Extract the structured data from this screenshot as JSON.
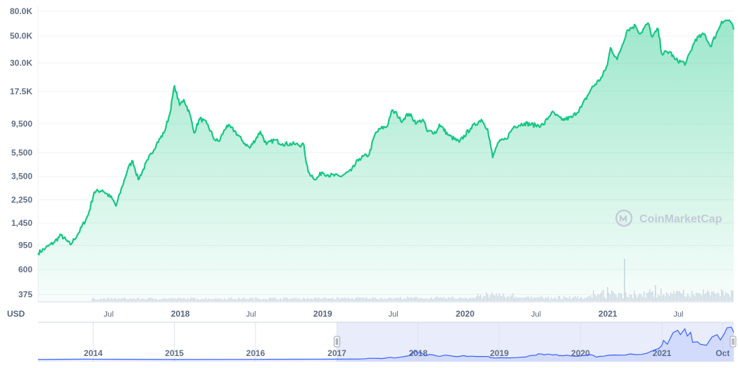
{
  "currency_label": "USD",
  "watermark": "CoinMarketCap",
  "colors": {
    "line": "#16c784",
    "fill_top": "#16c784",
    "volume": "#cfd6e4",
    "grid": "#eff2f5",
    "navigator_line": "#3861fb",
    "navigator_selection": "#e8ecfb"
  },
  "chart_data": {
    "type": "area",
    "scale": "log",
    "ylim": [
      330,
      82000
    ],
    "y_ticks": [
      {
        "value": 80000,
        "label": "80.0K"
      },
      {
        "value": 50000,
        "label": "50.0K"
      },
      {
        "value": 30000,
        "label": "30.0K"
      },
      {
        "value": 17500,
        "label": "17.5K"
      },
      {
        "value": 9500,
        "label": "9,500"
      },
      {
        "value": 5500,
        "label": "5,500"
      },
      {
        "value": 3500,
        "label": "3,500"
      },
      {
        "value": 2250,
        "label": "2,250"
      },
      {
        "value": 1450,
        "label": "1,450"
      },
      {
        "value": 950,
        "label": "950"
      },
      {
        "value": 600,
        "label": "600"
      },
      {
        "value": 375,
        "label": "375"
      }
    ],
    "x_range": [
      "2017-01-01",
      "2021-11-20"
    ],
    "x_ticks": [
      {
        "date": "2017-07-01",
        "label": "Jul",
        "bold": false
      },
      {
        "date": "2018-01-01",
        "label": "2018",
        "bold": true
      },
      {
        "date": "2018-07-01",
        "label": "Jul",
        "bold": false
      },
      {
        "date": "2019-01-01",
        "label": "2019",
        "bold": true
      },
      {
        "date": "2019-07-01",
        "label": "Jul",
        "bold": false
      },
      {
        "date": "2020-01-01",
        "label": "2020",
        "bold": true
      },
      {
        "date": "2020-07-01",
        "label": "Jul",
        "bold": false
      },
      {
        "date": "2021-01-01",
        "label": "2021",
        "bold": true
      },
      {
        "date": "2021-07-01",
        "label": "Jul",
        "bold": false
      }
    ],
    "series": [
      {
        "points": [
          [
            "2017-01-01",
            820
          ],
          [
            "2017-01-20",
            900
          ],
          [
            "2017-02-10",
            1000
          ],
          [
            "2017-03-01",
            1150
          ],
          [
            "2017-03-25",
            960
          ],
          [
            "2017-04-15",
            1200
          ],
          [
            "2017-05-10",
            1700
          ],
          [
            "2017-05-25",
            2600
          ],
          [
            "2017-06-15",
            2700
          ],
          [
            "2017-07-10",
            2300
          ],
          [
            "2017-07-20",
            2000
          ],
          [
            "2017-08-05",
            2900
          ],
          [
            "2017-08-20",
            4100
          ],
          [
            "2017-09-01",
            4700
          ],
          [
            "2017-09-15",
            3300
          ],
          [
            "2017-10-10",
            4800
          ],
          [
            "2017-11-01",
            6500
          ],
          [
            "2017-11-20",
            8000
          ],
          [
            "2017-12-05",
            11500
          ],
          [
            "2017-12-17",
            19500
          ],
          [
            "2017-12-30",
            13500
          ],
          [
            "2018-01-10",
            15000
          ],
          [
            "2018-01-25",
            11500
          ],
          [
            "2018-02-05",
            8000
          ],
          [
            "2018-02-20",
            10500
          ],
          [
            "2018-03-10",
            9500
          ],
          [
            "2018-03-30",
            7000
          ],
          [
            "2018-04-10",
            6800
          ],
          [
            "2018-04-30",
            9200
          ],
          [
            "2018-05-20",
            8300
          ],
          [
            "2018-06-10",
            6800
          ],
          [
            "2018-06-28",
            6000
          ],
          [
            "2018-07-25",
            8200
          ],
          [
            "2018-08-10",
            6400
          ],
          [
            "2018-08-30",
            7000
          ],
          [
            "2018-09-20",
            6500
          ],
          [
            "2018-10-20",
            6450
          ],
          [
            "2018-11-14",
            6300
          ],
          [
            "2018-11-20",
            4500
          ],
          [
            "2018-11-25",
            3800
          ],
          [
            "2018-12-15",
            3300
          ],
          [
            "2018-12-30",
            3800
          ],
          [
            "2019-01-15",
            3600
          ],
          [
            "2019-02-15",
            3500
          ],
          [
            "2019-03-15",
            3900
          ],
          [
            "2019-04-05",
            4900
          ],
          [
            "2019-04-30",
            5300
          ],
          [
            "2019-05-15",
            7800
          ],
          [
            "2019-05-30",
            8700
          ],
          [
            "2019-06-15",
            9000
          ],
          [
            "2019-06-26",
            12000
          ],
          [
            "2019-07-10",
            11500
          ],
          [
            "2019-07-20",
            10000
          ],
          [
            "2019-08-10",
            11500
          ],
          [
            "2019-08-30",
            9600
          ],
          [
            "2019-09-15",
            10300
          ],
          [
            "2019-09-26",
            8200
          ],
          [
            "2019-10-20",
            8100
          ],
          [
            "2019-10-27",
            9400
          ],
          [
            "2019-11-20",
            7600
          ],
          [
            "2019-12-17",
            6700
          ],
          [
            "2020-01-15",
            8700
          ],
          [
            "2020-02-12",
            10300
          ],
          [
            "2020-02-28",
            8600
          ],
          [
            "2020-03-12",
            5000
          ],
          [
            "2020-03-25",
            6600
          ],
          [
            "2020-04-15",
            7100
          ],
          [
            "2020-05-05",
            9000
          ],
          [
            "2020-06-01",
            9600
          ],
          [
            "2020-06-30",
            9200
          ],
          [
            "2020-07-20",
            9300
          ],
          [
            "2020-08-10",
            11800
          ],
          [
            "2020-09-05",
            10200
          ],
          [
            "2020-10-01",
            10700
          ],
          [
            "2020-10-25",
            13000
          ],
          [
            "2020-11-20",
            18500
          ],
          [
            "2020-12-17",
            23000
          ],
          [
            "2020-12-31",
            29000
          ],
          [
            "2021-01-08",
            40000
          ],
          [
            "2021-01-25",
            32000
          ],
          [
            "2021-02-20",
            56000
          ],
          [
            "2021-03-13",
            61000
          ],
          [
            "2021-03-25",
            52000
          ],
          [
            "2021-04-14",
            64000
          ],
          [
            "2021-04-25",
            49000
          ],
          [
            "2021-05-10",
            57000
          ],
          [
            "2021-05-19",
            36000
          ],
          [
            "2021-06-10",
            37000
          ],
          [
            "2021-06-22",
            32000
          ],
          [
            "2021-07-20",
            29800
          ],
          [
            "2021-08-14",
            47000
          ],
          [
            "2021-09-06",
            52000
          ],
          [
            "2021-09-21",
            41000
          ],
          [
            "2021-10-10",
            55000
          ],
          [
            "2021-10-20",
            66000
          ],
          [
            "2021-11-09",
            67500
          ],
          [
            "2021-11-20",
            56500
          ]
        ]
      }
    ],
    "navigator": {
      "ticks": [
        {
          "date": "2014-01-01",
          "label": "2014"
        },
        {
          "date": "2015-01-01",
          "label": "2015"
        },
        {
          "date": "2016-01-01",
          "label": "2016"
        },
        {
          "date": "2017-01-01",
          "label": "2017"
        },
        {
          "date": "2018-01-01",
          "label": "2018"
        },
        {
          "date": "2019-01-01",
          "label": "2019"
        },
        {
          "date": "2020-01-01",
          "label": "2020"
        },
        {
          "date": "2021-01-01",
          "label": "2021"
        },
        {
          "date": "2021-10-01",
          "label": "Oct"
        }
      ],
      "range": [
        "2013-04-28",
        "2021-11-20"
      ],
      "selection": [
        "2017-01-01",
        "2021-11-20"
      ]
    }
  }
}
